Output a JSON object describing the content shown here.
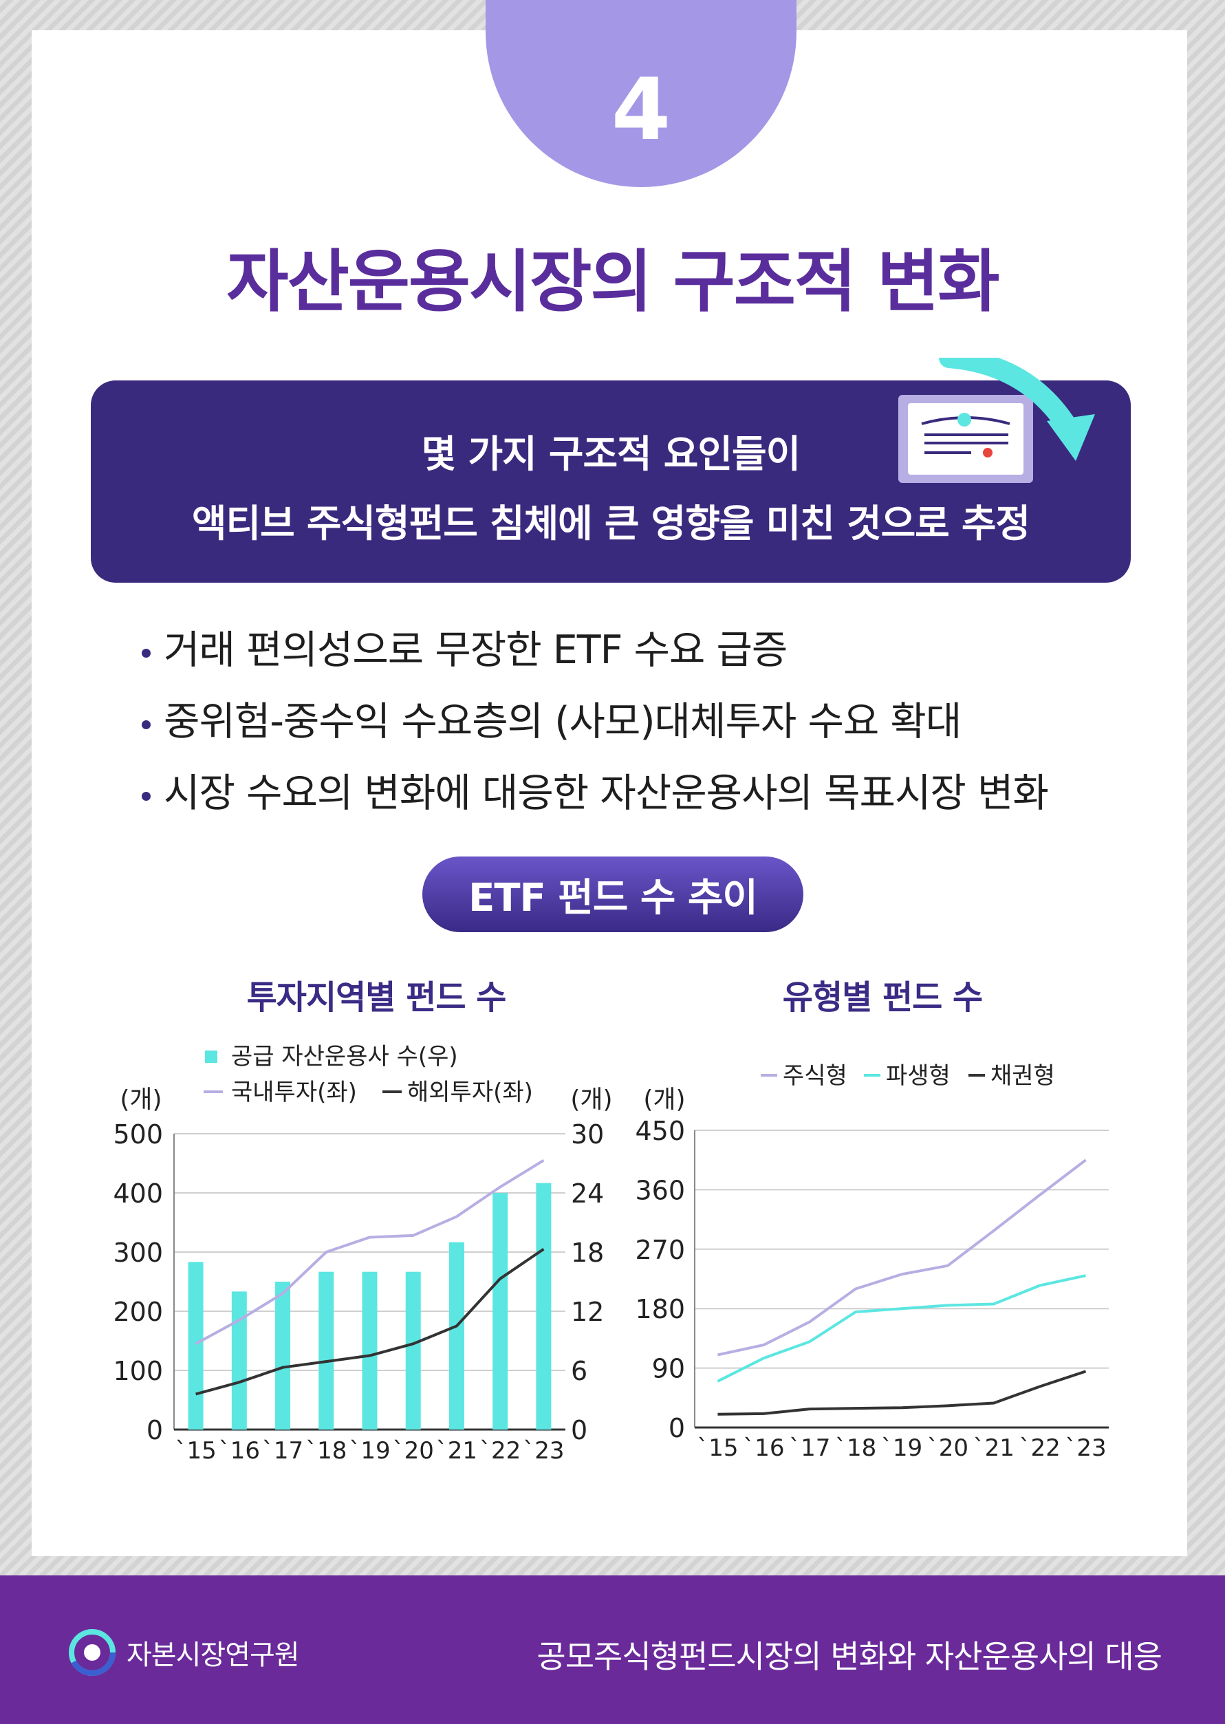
{
  "badge": "4",
  "title": "자산운용시장의 구조적 변화",
  "banner": {
    "line1": "몇 가지 구조적 요인들이",
    "line2": "액티브 주식형펀드 침체에 큰 영향을 미친 것으로 추정"
  },
  "bullets": [
    "거래 편의성으로 무장한 ETF 수요 급증",
    "중위험-중수익 수요층의 (사모)대체투자 수요 확대",
    "시장 수요의 변화에 대응한 자산운용사의 목표시장 변화"
  ],
  "section_title": "ETF 펀드 수 추이",
  "colors": {
    "purple": "#5a2d9c",
    "navy": "#3a2a7e",
    "lavender": "#b7aee3",
    "cyan": "#5ce6e2",
    "dark": "#333333"
  },
  "icons": {
    "document": "certificate-icon",
    "arrow": "curved-arrow-icon",
    "logo": "kcmi-logo-icon"
  },
  "chart_data": [
    {
      "type": "bar",
      "title": "투자지역별 펀드 수",
      "y_unit_left": "(개)",
      "y_unit_right": "(개)",
      "categories": [
        "`15",
        "`16",
        "`17",
        "`18",
        "`19",
        "`20",
        "`21",
        "`22",
        "`23"
      ],
      "ylim_left": [
        0,
        500
      ],
      "yticks_left": [
        0,
        100,
        200,
        300,
        400,
        500
      ],
      "ylim_right": [
        0,
        30
      ],
      "yticks_right": [
        0,
        6,
        12,
        18,
        24,
        30
      ],
      "grid": true,
      "legend_position": "top",
      "series": [
        {
          "name": "공급 자산운용사 수(우)",
          "kind": "bar",
          "axis": "right",
          "color": "#5ce6e2",
          "values": [
            17,
            14,
            15,
            16,
            16,
            16,
            19,
            24,
            25
          ]
        },
        {
          "name": "국내투자(좌)",
          "kind": "line",
          "axis": "left",
          "color": "#b7aee3",
          "values": [
            145,
            185,
            230,
            300,
            325,
            328,
            360,
            410,
            455
          ]
        },
        {
          "name": "해외투자(좌)",
          "kind": "line",
          "axis": "left",
          "color": "#333333",
          "values": [
            60,
            80,
            105,
            115,
            125,
            145,
            175,
            255,
            305
          ]
        }
      ]
    },
    {
      "type": "line",
      "title": "유형별 펀드 수",
      "y_unit_left": "(개)",
      "categories": [
        "`15",
        "`16",
        "`17",
        "`18",
        "`19",
        "`20",
        "`21",
        "`22",
        "`23"
      ],
      "ylim": [
        0,
        450
      ],
      "yticks": [
        0,
        90,
        180,
        270,
        360,
        450
      ],
      "grid": true,
      "legend_position": "top",
      "series": [
        {
          "name": "주식형",
          "color": "#b7aee3",
          "values": [
            110,
            125,
            160,
            210,
            232,
            245,
            298,
            352,
            405
          ]
        },
        {
          "name": "파생형",
          "color": "#5ce6e2",
          "values": [
            70,
            105,
            130,
            175,
            180,
            185,
            187,
            215,
            230
          ]
        },
        {
          "name": "채권형",
          "color": "#333333",
          "values": [
            20,
            21,
            28,
            29,
            30,
            33,
            37,
            62,
            85
          ]
        }
      ]
    }
  ],
  "footer": {
    "logo_text": "자본시장연구원",
    "subtitle": "공모주식형펀드시장의 변화와 자산운용사의 대응"
  }
}
